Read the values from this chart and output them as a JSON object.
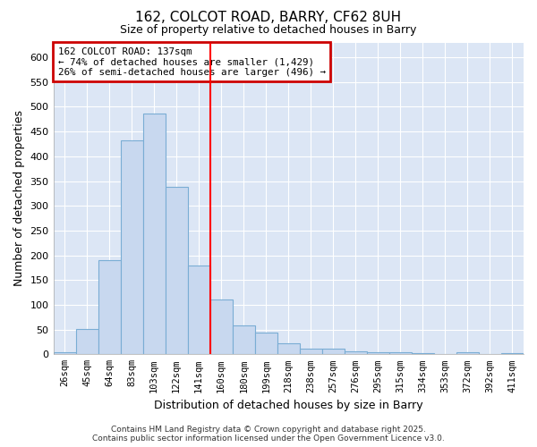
{
  "title1": "162, COLCOT ROAD, BARRY, CF62 8UH",
  "title2": "Size of property relative to detached houses in Barry",
  "xlabel": "Distribution of detached houses by size in Barry",
  "ylabel": "Number of detached properties",
  "categories": [
    "26sqm",
    "45sqm",
    "64sqm",
    "83sqm",
    "103sqm",
    "122sqm",
    "141sqm",
    "160sqm",
    "180sqm",
    "199sqm",
    "218sqm",
    "238sqm",
    "257sqm",
    "276sqm",
    "295sqm",
    "315sqm",
    "334sqm",
    "353sqm",
    "372sqm",
    "392sqm",
    "411sqm"
  ],
  "values": [
    5,
    51,
    191,
    432,
    486,
    339,
    179,
    110,
    59,
    44,
    22,
    11,
    12,
    6,
    4,
    4,
    2,
    1,
    5,
    1,
    3
  ],
  "bar_color": "#c8d8ef",
  "bar_edge_color": "#7aadd4",
  "redline_x": 6.5,
  "annotation_text": "162 COLCOT ROAD: 137sqm\n← 74% of detached houses are smaller (1,429)\n26% of semi-detached houses are larger (496) →",
  "annotation_box_color": "#ffffff",
  "annotation_box_edge": "#cc0000",
  "ylim": [
    0,
    630
  ],
  "yticks": [
    0,
    50,
    100,
    150,
    200,
    250,
    300,
    350,
    400,
    450,
    500,
    550,
    600
  ],
  "plot_bg_color": "#dce6f5",
  "fig_bg_color": "#ffffff",
  "grid_color": "#ffffff",
  "footer": "Contains HM Land Registry data © Crown copyright and database right 2025.\nContains public sector information licensed under the Open Government Licence v3.0."
}
